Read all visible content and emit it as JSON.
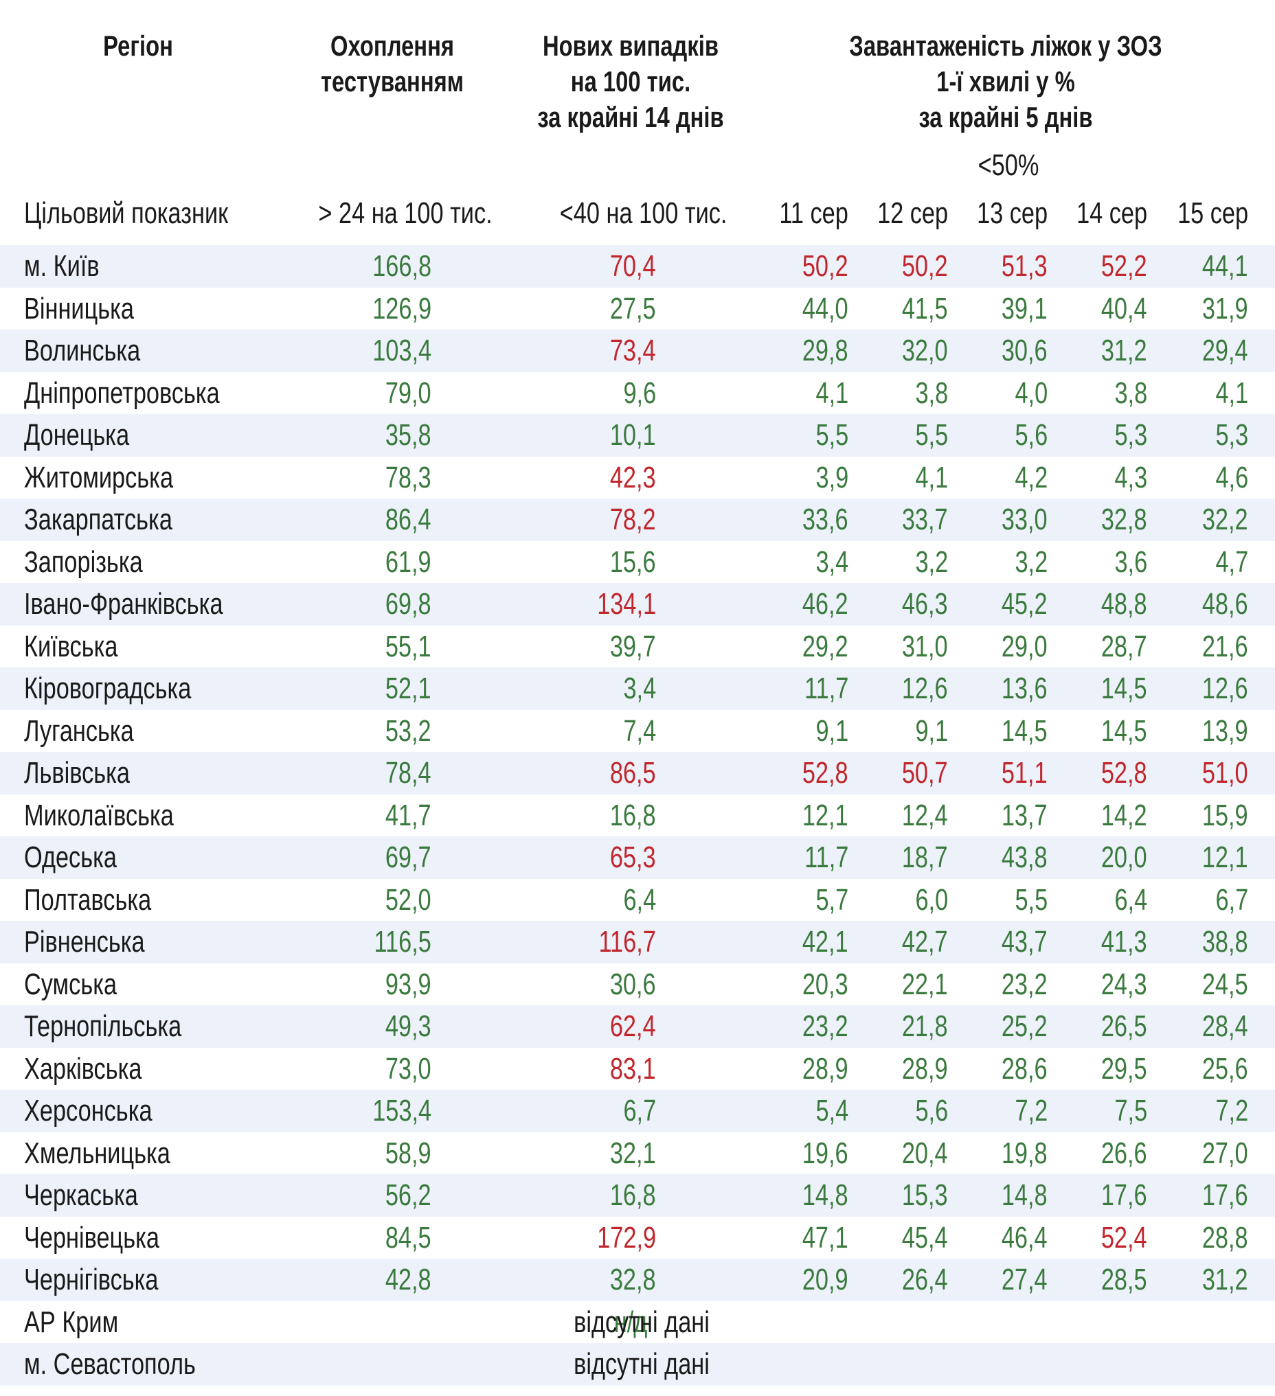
{
  "header": {
    "columns": [
      {
        "lines": [
          "Регіон"
        ]
      },
      {
        "lines": [
          "Охоплення",
          "тестуванням"
        ]
      },
      {
        "lines": [
          "Нових випадків",
          "на 100 тис.",
          "за крайні 14 днів"
        ]
      },
      {
        "lines": [
          "Завантаженість ліжок у ЗОЗ",
          "1-ї хвилі у %",
          "за крайні 5 днів"
        ]
      }
    ],
    "bed_target": "<50%",
    "dates": [
      "11 сер",
      "12 сер",
      "13 сер",
      "14 сер",
      "15 сер"
    ]
  },
  "target": {
    "label": "Цільовий показник",
    "coverage": "> 24 на 100 тис.",
    "cases": "<40 на 100 тис."
  },
  "palette": {
    "g": "#3b7a3e",
    "r": "#c1262d"
  },
  "rows": [
    {
      "region": "м. Київ",
      "values": [
        "166,8",
        "70,4",
        "50,2",
        "50,2",
        "51,3",
        "52,2",
        "44,1"
      ],
      "tone": "grrrrrg"
    },
    {
      "region": "Вінницька",
      "values": [
        "126,9",
        "27,5",
        "44,0",
        "41,5",
        "39,1",
        "40,4",
        "31,9"
      ],
      "tone": "ggggggg"
    },
    {
      "region": "Волинська",
      "values": [
        "103,4",
        "73,4",
        "29,8",
        "32,0",
        "30,6",
        "31,2",
        "29,4"
      ],
      "tone": "grggggg"
    },
    {
      "region": "Дніпропетровська",
      "values": [
        "79,0",
        "9,6",
        "4,1",
        "3,8",
        "4,0",
        "3,8",
        "4,1"
      ],
      "tone": "ggggggg"
    },
    {
      "region": "Донецька",
      "values": [
        "35,8",
        "10,1",
        "5,5",
        "5,5",
        "5,6",
        "5,3",
        "5,3"
      ],
      "tone": "ggggggg"
    },
    {
      "region": "Житомирська",
      "values": [
        "78,3",
        "42,3",
        "3,9",
        "4,1",
        "4,2",
        "4,3",
        "4,6"
      ],
      "tone": "grggggg"
    },
    {
      "region": "Закарпатська",
      "values": [
        "86,4",
        "78,2",
        "33,6",
        "33,7",
        "33,0",
        "32,8",
        "32,2"
      ],
      "tone": "grggggg"
    },
    {
      "region": "Запорізька",
      "values": [
        "61,9",
        "15,6",
        "3,4",
        "3,2",
        "3,2",
        "3,6",
        "4,7"
      ],
      "tone": "ggggggg"
    },
    {
      "region": "Івано-Франківська",
      "values": [
        "69,8",
        "134,1",
        "46,2",
        "46,3",
        "45,2",
        "48,8",
        "48,6"
      ],
      "tone": "grggggg"
    },
    {
      "region": "Київська",
      "values": [
        "55,1",
        "39,7",
        "29,2",
        "31,0",
        "29,0",
        "28,7",
        "21,6"
      ],
      "tone": "ggggggg"
    },
    {
      "region": "Кіровоградська",
      "values": [
        "52,1",
        "3,4",
        "11,7",
        "12,6",
        "13,6",
        "14,5",
        "12,6"
      ],
      "tone": "ggggggg"
    },
    {
      "region": "Луганська",
      "values": [
        "53,2",
        "7,4",
        "9,1",
        "9,1",
        "14,5",
        "14,5",
        "13,9"
      ],
      "tone": "ggggggg"
    },
    {
      "region": "Львівська",
      "values": [
        "78,4",
        "86,5",
        "52,8",
        "50,7",
        "51,1",
        "52,8",
        "51,0"
      ],
      "tone": "grrrrrr"
    },
    {
      "region": "Миколаївська",
      "values": [
        "41,7",
        "16,8",
        "12,1",
        "12,4",
        "13,7",
        "14,2",
        "15,9"
      ],
      "tone": "ggggggg"
    },
    {
      "region": "Одеська",
      "values": [
        "69,7",
        "65,3",
        "11,7",
        "18,7",
        "43,8",
        "20,0",
        "12,1"
      ],
      "tone": "grggggg"
    },
    {
      "region": "Полтавська",
      "values": [
        "52,0",
        "6,4",
        "5,7",
        "6,0",
        "5,5",
        "6,4",
        "6,7"
      ],
      "tone": "ggggggg"
    },
    {
      "region": "Рівненська",
      "values": [
        "116,5",
        "116,7",
        "42,1",
        "42,7",
        "43,7",
        "41,3",
        "38,8"
      ],
      "tone": "grggggg"
    },
    {
      "region": "Сумська",
      "values": [
        "93,9",
        "30,6",
        "20,3",
        "22,1",
        "23,2",
        "24,3",
        "24,5"
      ],
      "tone": "ggggggg"
    },
    {
      "region": "Тернопільська",
      "values": [
        "49,3",
        "62,4",
        "23,2",
        "21,8",
        "25,2",
        "26,5",
        "28,4"
      ],
      "tone": "grggggg"
    },
    {
      "region": "Харківська",
      "values": [
        "73,0",
        "83,1",
        "28,9",
        "28,9",
        "28,6",
        "29,5",
        "25,6"
      ],
      "tone": "grggggg"
    },
    {
      "region": "Херсонська",
      "values": [
        "153,4",
        "6,7",
        "5,4",
        "5,6",
        "7,2",
        "7,5",
        "7,2"
      ],
      "tone": "ggggggg"
    },
    {
      "region": "Хмельницька",
      "values": [
        "58,9",
        "32,1",
        "19,6",
        "20,4",
        "19,8",
        "26,6",
        "27,0"
      ],
      "tone": "ggggggg"
    },
    {
      "region": "Черкаська",
      "values": [
        "56,2",
        "16,8",
        "14,8",
        "15,3",
        "14,8",
        "17,6",
        "17,6"
      ],
      "tone": "ggggggg"
    },
    {
      "region": "Чернівецька",
      "values": [
        "84,5",
        "172,9",
        "47,1",
        "45,4",
        "46,4",
        "52,4",
        "28,8"
      ],
      "tone": "grgggrg"
    },
    {
      "region": "Чернігівська",
      "values": [
        "42,8",
        "32,8",
        "20,9",
        "26,4",
        "27,4",
        "28,5",
        "31,2"
      ],
      "tone": "ggggggg"
    }
  ],
  "missing": [
    {
      "region": "АР Крим",
      "note": "відсутні дані",
      "overlay": "н/д"
    },
    {
      "region": "м. Севастополь",
      "note": "відсутні дані"
    }
  ]
}
